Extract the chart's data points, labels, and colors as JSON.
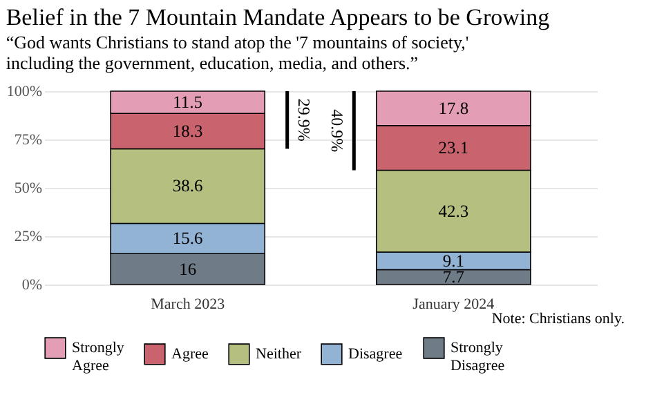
{
  "chart_data": {
    "type": "bar",
    "stacked": true,
    "title": "Belief in the 7 Mountain Mandate Appears to be Growing",
    "subtitle": "“God wants Christians to stand atop the '7 mountains of society,'\n including the government, education, media, and others.”",
    "categories": [
      "March 2023",
      "January 2024"
    ],
    "series": [
      {
        "name": "Strongly Disagree",
        "color": "#707b88",
        "values": [
          16,
          7.7
        ]
      },
      {
        "name": "Disagree",
        "color": "#93b3d4",
        "values": [
          15.6,
          9.1
        ]
      },
      {
        "name": "Neither",
        "color": "#b5bf7f",
        "values": [
          38.6,
          42.3
        ]
      },
      {
        "name": "Agree",
        "color": "#c9636e",
        "values": [
          18.3,
          23.1
        ]
      },
      {
        "name": "Strongly Agree",
        "color": "#e39db5",
        "values": [
          11.5,
          17.8
        ]
      }
    ],
    "ylim": [
      0,
      100
    ],
    "yticks": [
      {
        "value": 0,
        "label": "0%"
      },
      {
        "value": 25,
        "label": "25%"
      },
      {
        "value": 50,
        "label": "50%"
      },
      {
        "value": 75,
        "label": "75%"
      },
      {
        "value": 100,
        "label": "100%"
      }
    ],
    "data_labels": true,
    "grid": "y",
    "legend": "bottom",
    "annotations": [
      "29.9%",
      "40.9%",
      "Note: Christians only."
    ]
  }
}
